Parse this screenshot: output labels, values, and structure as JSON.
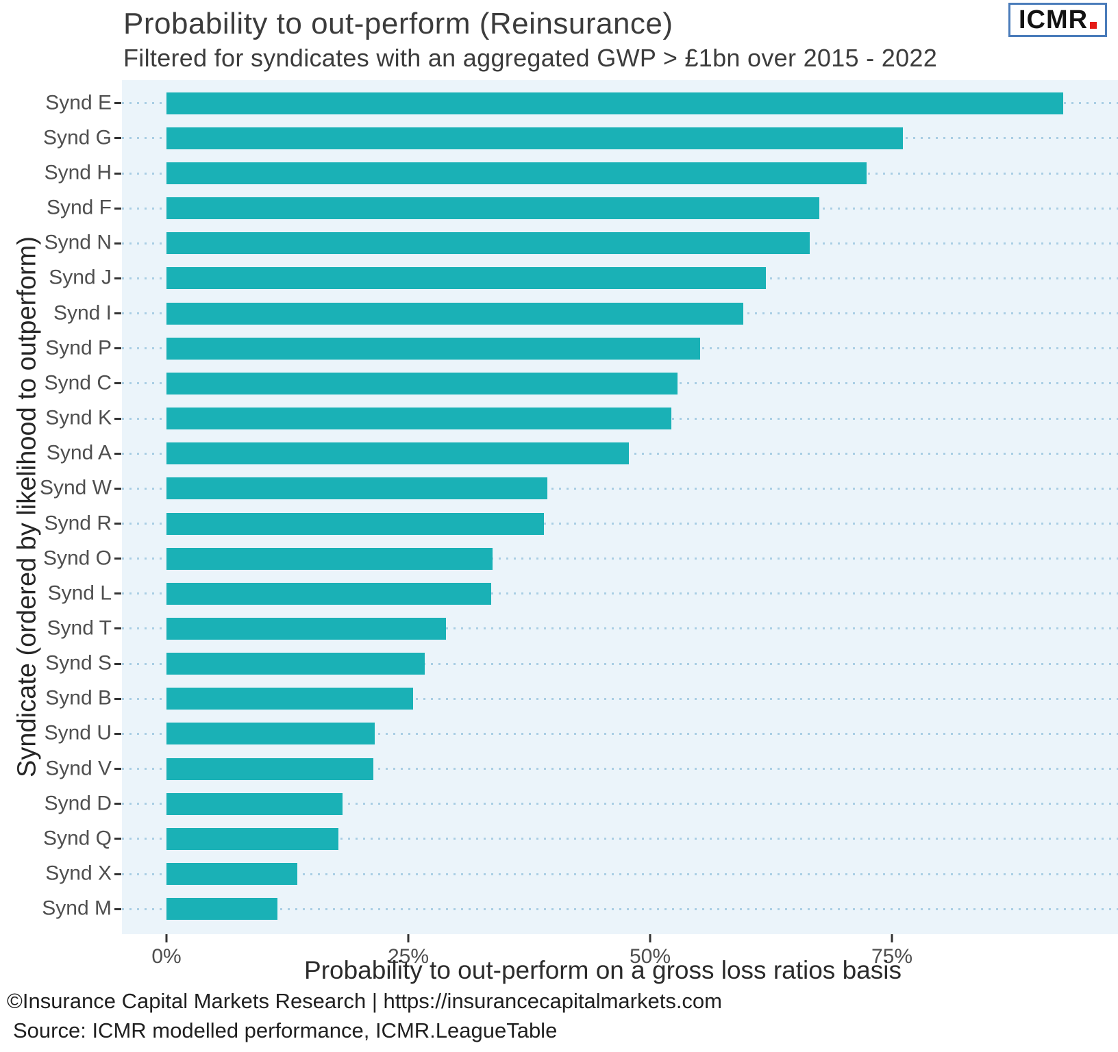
{
  "header": {
    "title": "Probability to out-perform (Reinsurance)",
    "subtitle": "Filtered for syndicates with an aggregated GWP > £1bn over 2015 - 2022",
    "logo_text": "ICMR"
  },
  "chart_data": {
    "type": "bar",
    "orientation": "horizontal",
    "title": "Probability to out-perform (Reinsurance)",
    "subtitle": "Filtered for syndicates with an aggregated GWP > £1bn over 2015 - 2022",
    "categories": [
      "Synd E",
      "Synd G",
      "Synd H",
      "Synd F",
      "Synd N",
      "Synd J",
      "Synd I",
      "Synd P",
      "Synd C",
      "Synd K",
      "Synd A",
      "Synd W",
      "Synd R",
      "Synd O",
      "Synd L",
      "Synd T",
      "Synd S",
      "Synd B",
      "Synd U",
      "Synd V",
      "Synd D",
      "Synd Q",
      "Synd X",
      "Synd M"
    ],
    "values": [
      92.7,
      76.1,
      72.4,
      67.5,
      66.5,
      62.0,
      59.6,
      55.2,
      52.8,
      52.2,
      47.8,
      39.4,
      39.0,
      33.7,
      33.6,
      28.9,
      26.7,
      25.5,
      21.5,
      21.4,
      18.2,
      17.8,
      13.5,
      11.5
    ],
    "value_unit": "%",
    "xlabel": "Probability to out-perform on a gross loss ratios basis",
    "ylabel": "Syndicate (ordered by likelihood to outperform)",
    "x_ticks": [
      "0%",
      "25%",
      "50%",
      "75%"
    ],
    "x_tick_values": [
      0,
      25,
      50,
      75
    ],
    "xlim": [
      -4.6,
      98.4
    ],
    "grid": "dotted horizontal line per category",
    "legend": "none",
    "colors": {
      "bar": "#1ab1b6",
      "panel_background": "#ebf4fa",
      "grid_dot": "#a9cee4",
      "tick": "#333333",
      "logo_border_blue": "#4a7cba",
      "logo_dot_red": "#e41b17"
    }
  },
  "footer": {
    "line1": "©Insurance Capital Markets Research | https://insurancecapitalmarkets.com",
    "line2": "Source: ICMR modelled performance, ICMR.LeagueTable"
  }
}
